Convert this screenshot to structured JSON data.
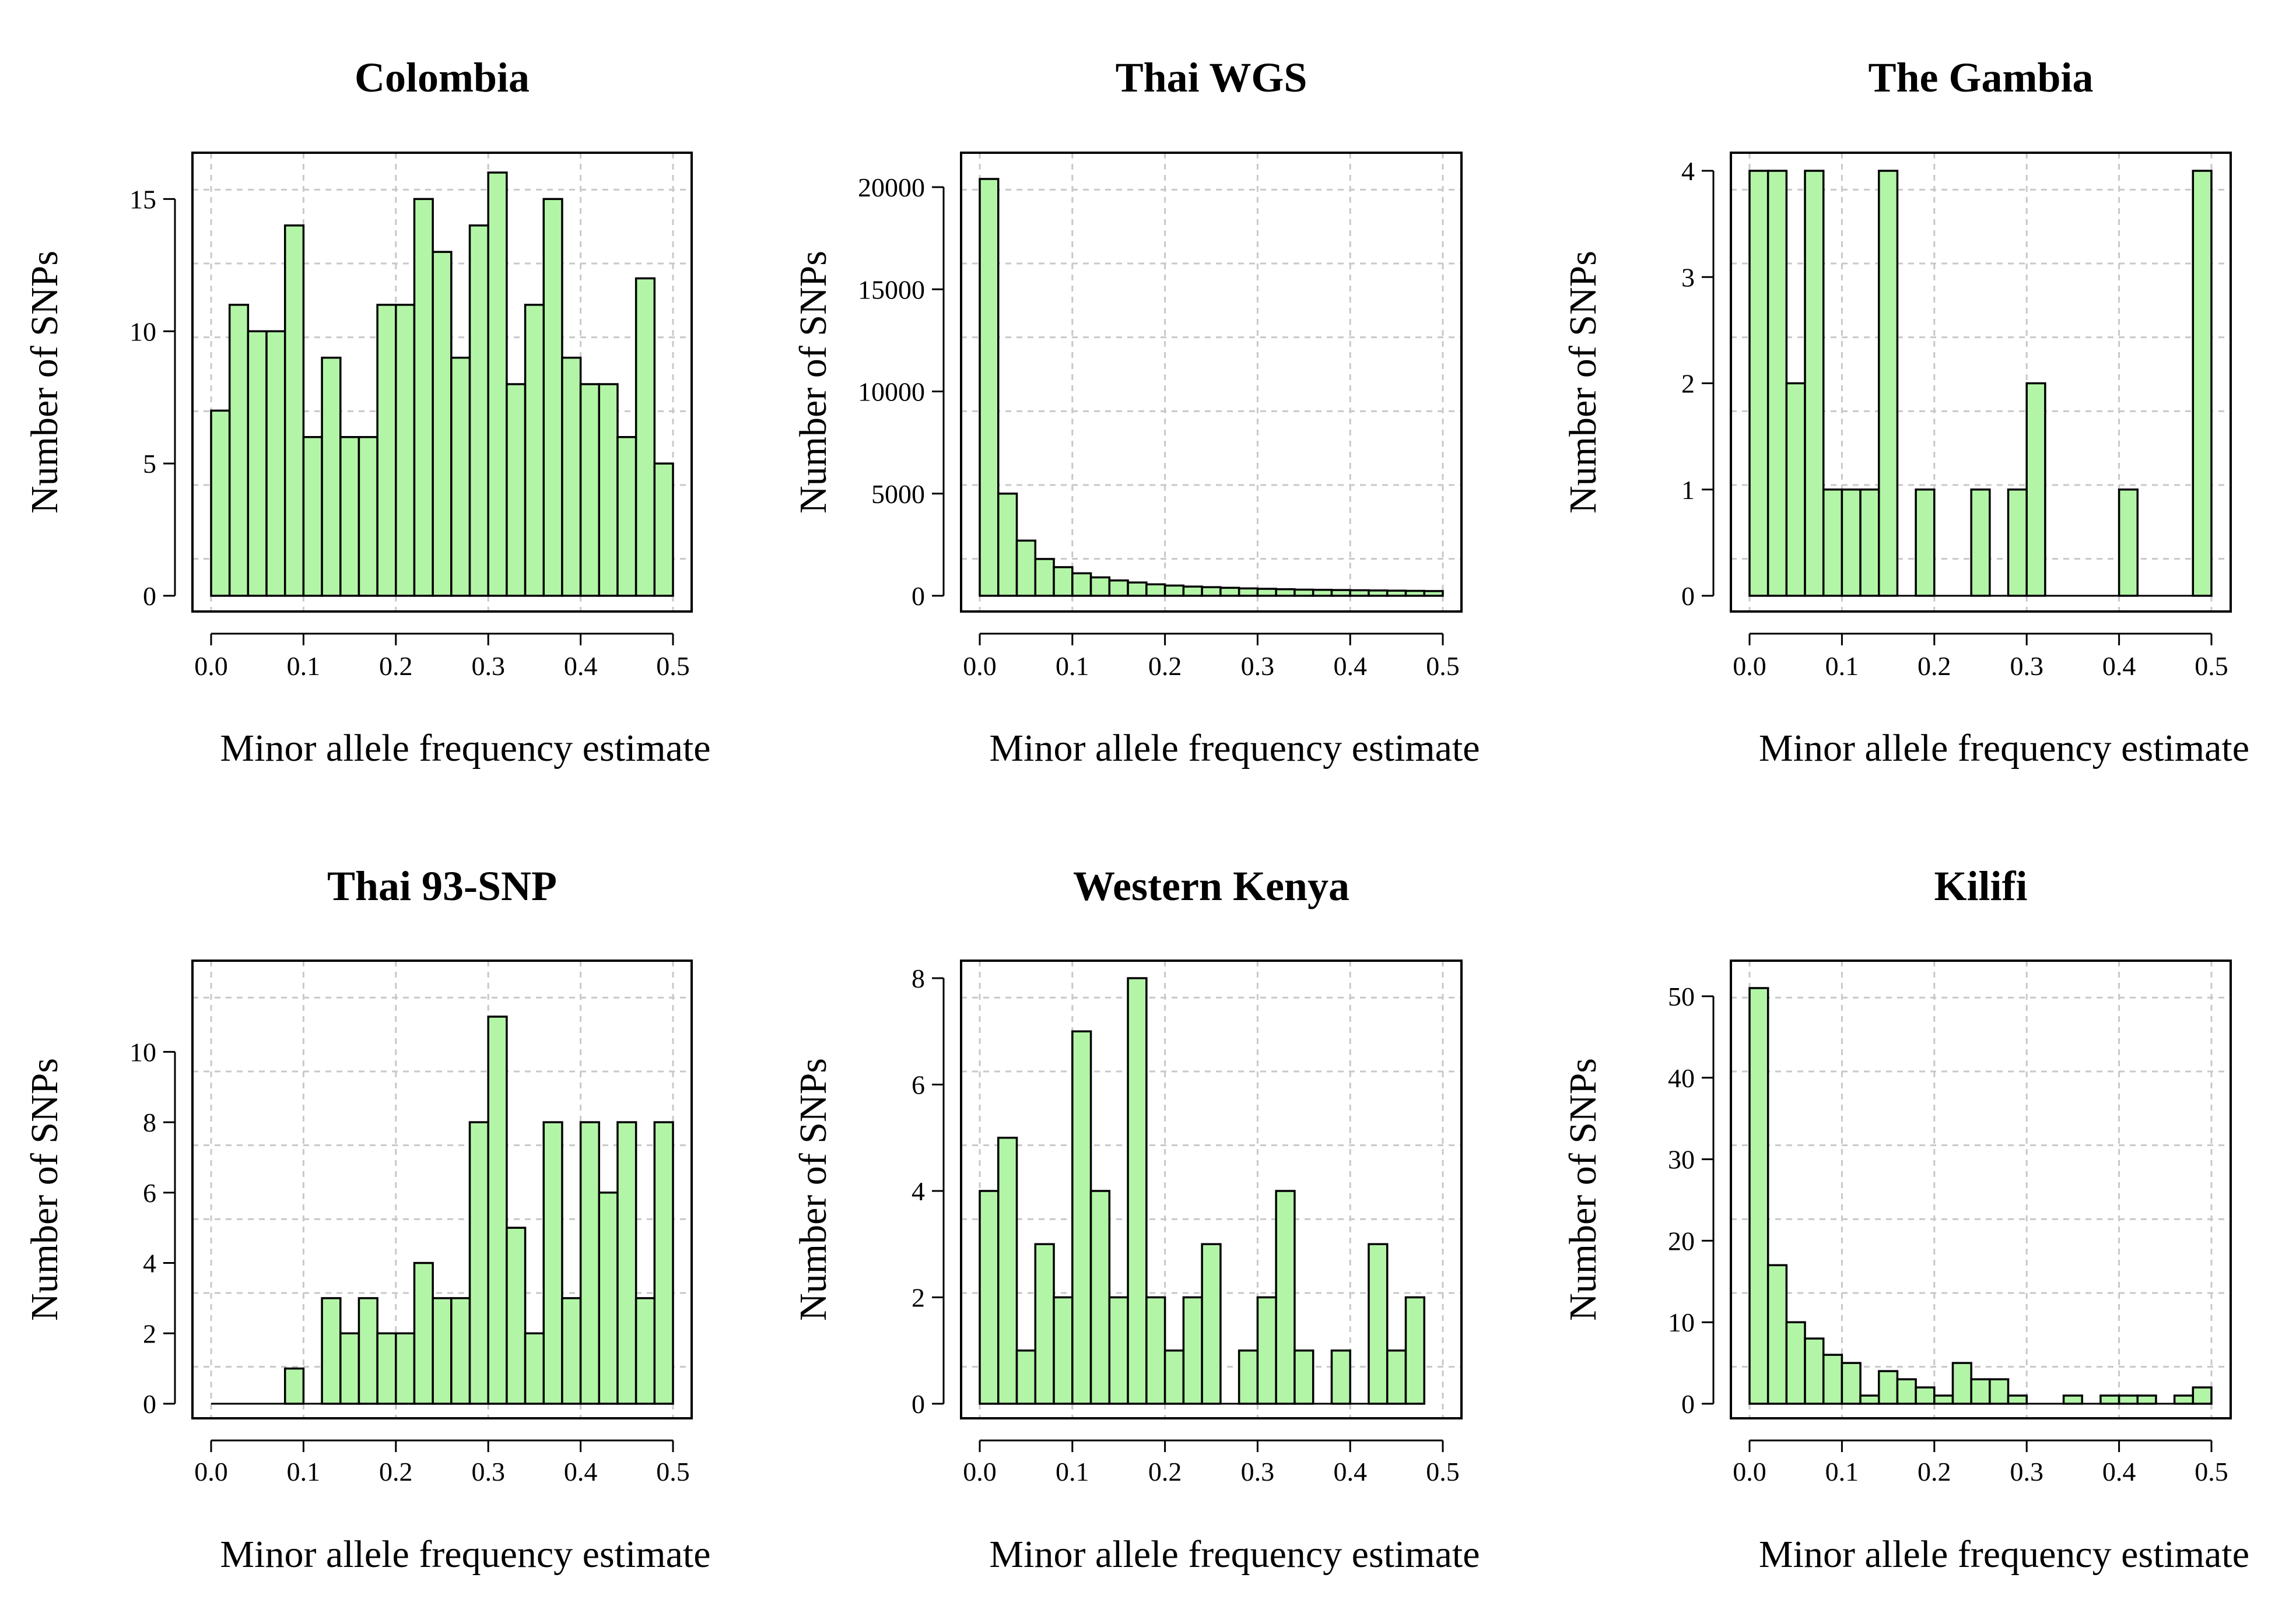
{
  "colors": {
    "bar_fill": "#b3f5a7",
    "bar_stroke": "#000000",
    "grid": "#c8c8c8"
  },
  "chart_data": [
    {
      "type": "bar",
      "title": "Colombia",
      "xlabel": "Minor allele frequency estimate",
      "ylabel": "Number of SNPs",
      "bin_width": 0.02,
      "x": [
        0.0,
        0.02,
        0.04,
        0.06,
        0.08,
        0.1,
        0.12,
        0.14,
        0.16,
        0.18,
        0.2,
        0.22,
        0.24,
        0.26,
        0.28,
        0.3,
        0.32,
        0.34,
        0.36,
        0.38,
        0.4,
        0.42,
        0.44,
        0.46,
        0.48
      ],
      "values": [
        7,
        11,
        10,
        10,
        14,
        6,
        9,
        6,
        6,
        11,
        11,
        15,
        13,
        9,
        14,
        16,
        8,
        11,
        15,
        9,
        8,
        8,
        6,
        12,
        5
      ],
      "xlim": [
        0,
        0.5
      ],
      "ylim": [
        0,
        16
      ],
      "xticks": [
        "0.0",
        "0.1",
        "0.2",
        "0.3",
        "0.4",
        "0.5"
      ],
      "yticks": [
        "0",
        "5",
        "10",
        "15"
      ],
      "grid": true
    },
    {
      "type": "bar",
      "title": "Thai WGS",
      "xlabel": "Minor allele frequency estimate",
      "ylabel": "Number of SNPs",
      "bin_width": 0.02,
      "x": [
        0.0,
        0.02,
        0.04,
        0.06,
        0.08,
        0.1,
        0.12,
        0.14,
        0.16,
        0.18,
        0.2,
        0.22,
        0.24,
        0.26,
        0.28,
        0.3,
        0.32,
        0.34,
        0.36,
        0.38,
        0.4,
        0.42,
        0.44,
        0.46,
        0.48
      ],
      "values": [
        20400,
        5000,
        2700,
        1800,
        1400,
        1100,
        900,
        750,
        650,
        560,
        500,
        450,
        420,
        390,
        360,
        340,
        320,
        300,
        290,
        280,
        270,
        260,
        250,
        240,
        230
      ],
      "xlim": [
        0,
        0.5
      ],
      "ylim": [
        0,
        20400
      ],
      "xticks": [
        "0.0",
        "0.1",
        "0.2",
        "0.3",
        "0.4",
        "0.5"
      ],
      "yticks": [
        "0",
        "5000",
        "10000",
        "15000",
        "20000"
      ],
      "grid": true
    },
    {
      "type": "bar",
      "title": "The Gambia",
      "xlabel": "Minor allele frequency estimate",
      "ylabel": "Number of SNPs",
      "bin_width": 0.02,
      "x": [
        0.0,
        0.02,
        0.04,
        0.06,
        0.08,
        0.1,
        0.12,
        0.14,
        0.16,
        0.18,
        0.2,
        0.22,
        0.24,
        0.26,
        0.28,
        0.3,
        0.32,
        0.34,
        0.36,
        0.38,
        0.4,
        0.42,
        0.44,
        0.46,
        0.48
      ],
      "values": [
        4,
        4,
        2,
        4,
        1,
        1,
        1,
        4,
        0,
        1,
        0,
        0,
        1,
        0,
        1,
        2,
        0,
        0,
        0,
        0,
        1,
        0,
        0,
        0,
        4
      ],
      "xlim": [
        0,
        0.5
      ],
      "ylim": [
        0,
        4
      ],
      "xticks": [
        "0.0",
        "0.1",
        "0.2",
        "0.3",
        "0.4",
        "0.5"
      ],
      "yticks": [
        "0",
        "1",
        "2",
        "3",
        "4"
      ],
      "grid": true
    },
    {
      "type": "bar",
      "title": "Thai 93-SNP",
      "xlabel": "Minor allele frequency estimate",
      "ylabel": "Number of SNPs",
      "bin_width": 0.02,
      "x": [
        0.0,
        0.02,
        0.04,
        0.06,
        0.08,
        0.1,
        0.12,
        0.14,
        0.16,
        0.18,
        0.2,
        0.22,
        0.24,
        0.26,
        0.28,
        0.3,
        0.32,
        0.34,
        0.36,
        0.38,
        0.4,
        0.42,
        0.44,
        0.46,
        0.48
      ],
      "values": [
        0,
        0,
        0,
        0,
        1,
        0,
        3,
        2,
        3,
        2,
        2,
        4,
        3,
        3,
        8,
        11,
        5,
        2,
        8,
        3,
        8,
        6,
        8,
        3,
        8
      ],
      "xlim": [
        0,
        0.5
      ],
      "ylim": [
        0,
        11
      ],
      "xticks": [
        "0.0",
        "0.1",
        "0.2",
        "0.3",
        "0.4",
        "0.5"
      ],
      "yticks": [
        "0",
        "2",
        "4",
        "6",
        "8",
        "10"
      ],
      "grid": true
    },
    {
      "type": "bar",
      "title": "Western Kenya",
      "xlabel": "Minor allele frequency estimate",
      "ylabel": "Number of SNPs",
      "bin_width": 0.02,
      "x": [
        0.0,
        0.02,
        0.04,
        0.06,
        0.08,
        0.1,
        0.12,
        0.14,
        0.16,
        0.18,
        0.2,
        0.22,
        0.24,
        0.26,
        0.28,
        0.3,
        0.32,
        0.34,
        0.36,
        0.38,
        0.4,
        0.42,
        0.44,
        0.46
      ],
      "values": [
        4,
        5,
        1,
        3,
        2,
        7,
        4,
        2,
        8,
        2,
        1,
        2,
        3,
        0,
        1,
        2,
        4,
        1,
        0,
        1,
        0,
        3,
        1,
        2
      ],
      "xlim": [
        0,
        0.5
      ],
      "ylim": [
        0,
        8
      ],
      "xticks": [
        "0.0",
        "0.1",
        "0.2",
        "0.3",
        "0.4",
        "0.5"
      ],
      "yticks": [
        "0",
        "2",
        "4",
        "6",
        "8"
      ],
      "grid": true
    },
    {
      "type": "bar",
      "title": "Kilifi",
      "xlabel": "Minor allele frequency estimate",
      "ylabel": "Number of SNPs",
      "bin_width": 0.02,
      "x": [
        0.0,
        0.02,
        0.04,
        0.06,
        0.08,
        0.1,
        0.12,
        0.14,
        0.16,
        0.18,
        0.2,
        0.22,
        0.24,
        0.26,
        0.28,
        0.3,
        0.32,
        0.34,
        0.36,
        0.38,
        0.4,
        0.42,
        0.44,
        0.46,
        0.48
      ],
      "values": [
        51,
        17,
        10,
        8,
        6,
        5,
        1,
        4,
        3,
        2,
        1,
        5,
        3,
        3,
        1,
        0,
        0,
        1,
        0,
        1,
        1,
        1,
        0,
        1,
        2
      ],
      "xlim": [
        0,
        0.5
      ],
      "ylim": [
        0,
        51
      ],
      "xticks": [
        "0.0",
        "0.1",
        "0.2",
        "0.3",
        "0.4",
        "0.5"
      ],
      "yticks": [
        "0",
        "10",
        "20",
        "30",
        "40",
        "50"
      ],
      "grid": true
    }
  ]
}
